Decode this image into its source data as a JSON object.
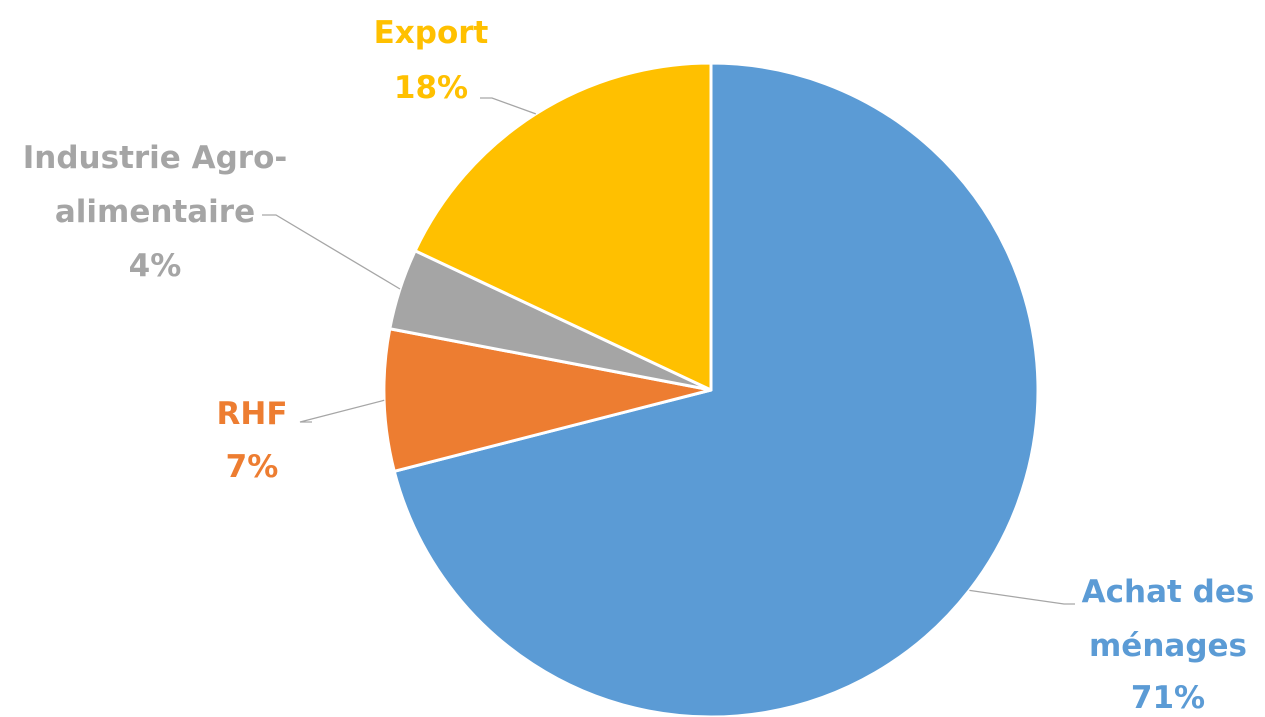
{
  "chart_data": {
    "type": "pie",
    "title": "",
    "slices": [
      {
        "label_lines": [
          "Achat des",
          "ménages"
        ],
        "value": 71,
        "pct_label": "71%",
        "color": "#5B9BD5"
      },
      {
        "label_lines": [
          "RHF"
        ],
        "value": 7,
        "pct_label": "7%",
        "color": "#ED7D31"
      },
      {
        "label_lines": [
          "Industrie Agro-",
          "alimentaire"
        ],
        "value": 4,
        "pct_label": "4%",
        "color": "#A5A5A5"
      },
      {
        "label_lines": [
          "Export"
        ],
        "value": 18,
        "pct_label": "18%",
        "color": "#FFC000"
      }
    ],
    "start_angle_deg": 0,
    "direction": "clockwise",
    "legend": "none",
    "data_labels": "outside-with-leader-lines"
  }
}
